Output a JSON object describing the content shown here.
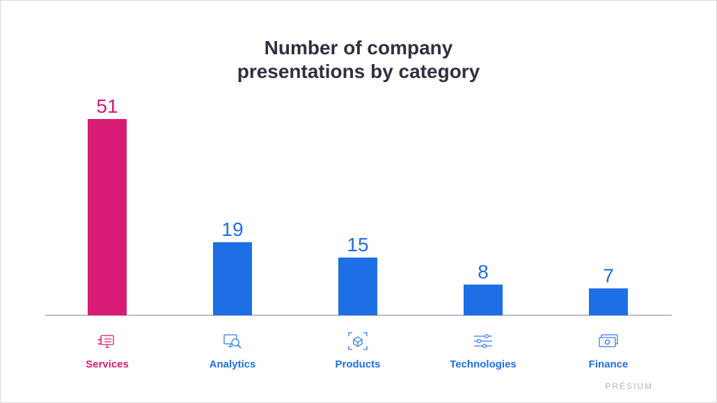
{
  "title_lines": [
    "Number of company",
    "presentations by category"
  ],
  "brand": "PRÉSIUM",
  "colors": {
    "highlight": "#d81b74",
    "primary": "#1e6fe6",
    "icon_highlight": "#d81b74",
    "icon_primary": "#2f7cf0",
    "axis": "#b8bcd0",
    "title": "#2f3142"
  },
  "chart_data": {
    "type": "bar",
    "title": "Number of company presentations by category",
    "categories": [
      "Services",
      "Analytics",
      "Products",
      "Technologies",
      "Finance"
    ],
    "values": [
      51,
      19,
      15,
      8,
      7
    ],
    "highlight_index": 0,
    "icons": [
      "checklist-monitor-icon",
      "monitor-magnifier-icon",
      "box-scan-icon",
      "sliders-icon",
      "cash-icon"
    ],
    "ylim": [
      0,
      51
    ],
    "grid": false,
    "legend": "none"
  }
}
